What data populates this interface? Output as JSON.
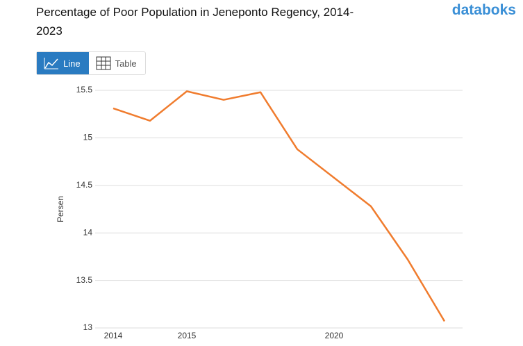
{
  "chart_data": {
    "type": "line",
    "title": "Percentage of Poor Population in Jeneponto Regency, 2014-2023",
    "y_label": "Persen",
    "categories": [
      "2014",
      null,
      "2015",
      null,
      null,
      null,
      "2020",
      null,
      null,
      null
    ],
    "series": [
      {
        "name": "Persen",
        "color": "#f07c2e",
        "values": [
          15.31,
          15.18,
          15.49,
          15.4,
          15.48,
          14.88,
          14.58,
          14.28,
          13.72,
          13.07
        ]
      }
    ],
    "ylim": [
      13,
      15.5
    ],
    "yticks": [
      13,
      13.5,
      14,
      14.5,
      15,
      15.5
    ],
    "grid": true
  },
  "ui": {
    "buttons": [
      "Line",
      "Table"
    ],
    "logo": "databoks"
  }
}
